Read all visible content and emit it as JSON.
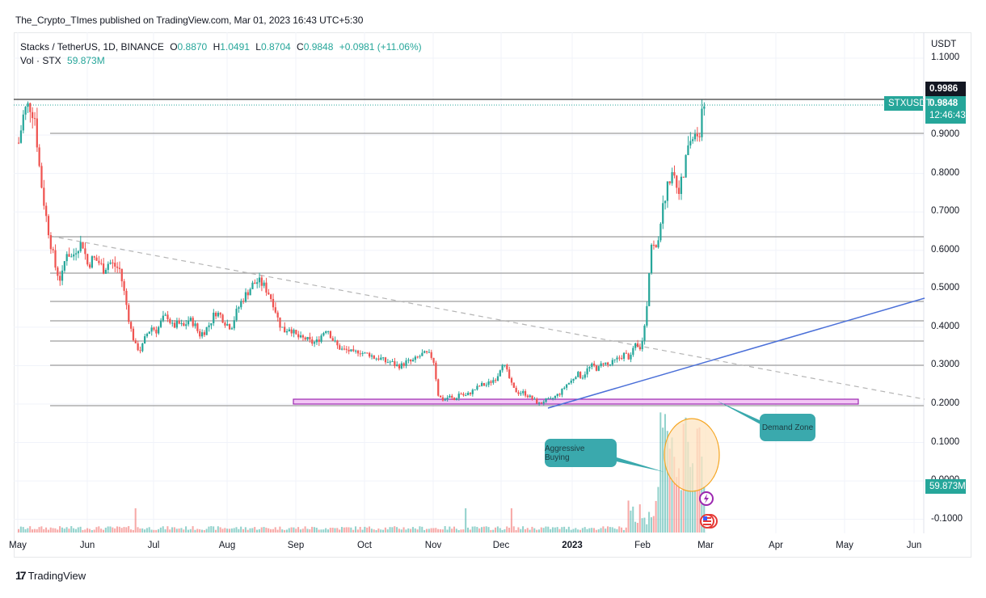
{
  "header": {
    "published": "The_Crypto_TImes published on TradingView.com, Mar 01, 2023 16:43 UTC+5:30"
  },
  "legend": {
    "symbol": "Stacks / TetherUS, 1D, BINANCE",
    "open_label": "O",
    "open": "0.8870",
    "high_label": "H",
    "high": "1.0491",
    "low_label": "L",
    "low": "0.8704",
    "close_label": "C",
    "close": "0.9848",
    "change": "+0.0981 (+11.06%)",
    "vol_label": "Vol · STX",
    "vol_value": "59.873M"
  },
  "price_axis": {
    "currency": "USDT",
    "ticks": [
      "1.1000",
      "0.9000",
      "0.8000",
      "0.7000",
      "0.6000",
      "0.5000",
      "0.4000",
      "0.3000",
      "0.2000",
      "0.1000",
      "0.0000",
      "-0.1000"
    ],
    "high_tag": "0.9986",
    "last_tag": "0.9848",
    "countdown": "12:46:43",
    "symbol_tag": "STXUSDT",
    "volume_tag": "59.873M"
  },
  "time_axis": {
    "labels": [
      "May",
      "Jun",
      "Jul",
      "Aug",
      "Sep",
      "Oct",
      "Nov",
      "Dec",
      "2023",
      "Feb",
      "Mar",
      "Apr",
      "May",
      "Jun"
    ]
  },
  "annotations": {
    "aggressive_buying": "Aggressive Buying",
    "demand_zone": "Demand Zone"
  },
  "footer": {
    "logo": "17",
    "brand": "TradingView"
  },
  "colors": {
    "up": "#26a69a",
    "down": "#ef5350",
    "trendline": "#4a6fd8",
    "demand_zone_fill": "#f3c6f5",
    "demand_zone_border": "#9c27b0",
    "callout": "#3aa9ad",
    "ellipse_fill": "#fde4c2",
    "ellipse_border": "#f5a623"
  },
  "chart_data": {
    "type": "candlestick",
    "title": "Stacks / TetherUS, 1D, BINANCE",
    "xlabel": "",
    "ylabel": "USDT",
    "ylim": [
      -0.12,
      1.12
    ],
    "x_labels": [
      "May",
      "Jun",
      "Jul",
      "Aug",
      "Sep",
      "Oct",
      "Nov",
      "Dec",
      "2023",
      "Feb",
      "Mar",
      "Apr",
      "May",
      "Jun"
    ],
    "ohlc_last": {
      "open": 0.887,
      "high": 1.0491,
      "low": 0.8704,
      "close": 0.9848,
      "change": 0.0981,
      "change_pct": 11.06
    },
    "horizontal_levels": [
      0.9986,
      0.9,
      0.63,
      0.535,
      0.46,
      0.41,
      0.358,
      0.295,
      0.19
    ],
    "demand_zone": [
      0.195,
      0.208
    ],
    "trendline_up": {
      "from": [
        "late Dec 2022",
        0.19
      ],
      "to": [
        "Jun 2023",
        0.475
      ]
    },
    "trendline_down_dashed": {
      "from": [
        "May 2022",
        0.63
      ],
      "to": [
        "Jun 2023",
        0.21
      ]
    },
    "closes_approx": [
      0.88,
      0.96,
      0.98,
      0.95,
      0.8,
      0.7,
      0.62,
      0.55,
      0.52,
      0.6,
      0.58,
      0.61,
      0.62,
      0.56,
      0.58,
      0.57,
      0.55,
      0.57,
      0.56,
      0.55,
      0.48,
      0.4,
      0.35,
      0.34,
      0.38,
      0.4,
      0.39,
      0.42,
      0.43,
      0.4,
      0.41,
      0.4,
      0.42,
      0.41,
      0.38,
      0.39,
      0.41,
      0.44,
      0.43,
      0.41,
      0.4,
      0.44,
      0.47,
      0.49,
      0.51,
      0.52,
      0.51,
      0.49,
      0.46,
      0.41,
      0.39,
      0.4,
      0.38,
      0.37,
      0.37,
      0.36,
      0.36,
      0.38,
      0.4,
      0.37,
      0.35,
      0.34,
      0.34,
      0.33,
      0.34,
      0.33,
      0.33,
      0.32,
      0.32,
      0.31,
      0.31,
      0.3,
      0.3,
      0.31,
      0.31,
      0.32,
      0.33,
      0.33,
      0.32,
      0.22,
      0.21,
      0.22,
      0.21,
      0.23,
      0.22,
      0.23,
      0.24,
      0.25,
      0.25,
      0.26,
      0.27,
      0.31,
      0.28,
      0.24,
      0.23,
      0.23,
      0.22,
      0.21,
      0.2,
      0.21,
      0.21,
      0.22,
      0.23,
      0.25,
      0.26,
      0.28,
      0.27,
      0.29,
      0.3,
      0.29,
      0.31,
      0.3,
      0.31,
      0.32,
      0.33,
      0.32,
      0.35,
      0.34,
      0.42,
      0.62,
      0.6,
      0.7,
      0.76,
      0.82,
      0.76,
      0.78,
      0.88,
      0.89,
      0.9,
      0.98
    ],
    "volume_last": "59.873M"
  }
}
